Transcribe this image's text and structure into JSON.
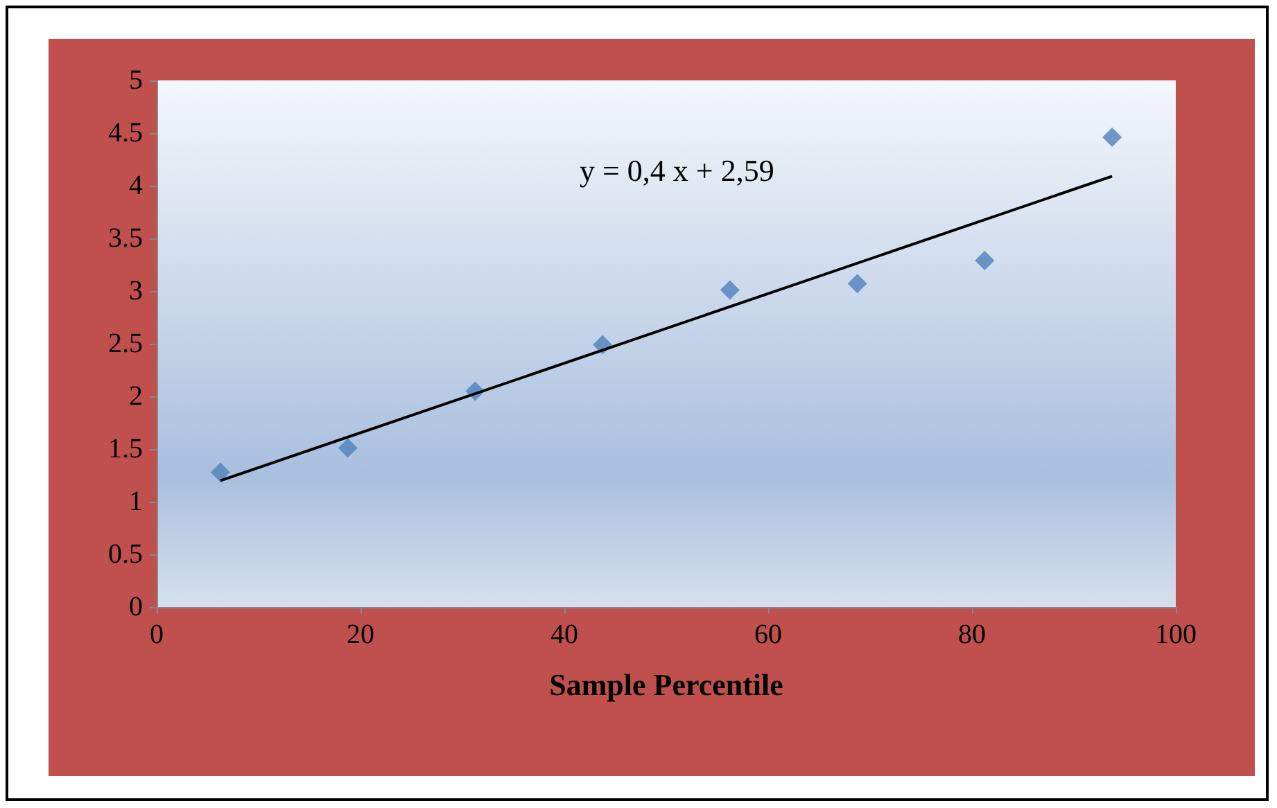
{
  "chart_data": {
    "type": "scatter",
    "xlabel": "Sample Percentile",
    "annotations": [
      "y = 0,4 x + 2,59"
    ],
    "xlim": [
      0,
      100
    ],
    "xticks": [
      0,
      20,
      40,
      60,
      80,
      100
    ],
    "ylim": [
      0,
      5
    ],
    "yticks": [
      0,
      0.5,
      1,
      1.5,
      2,
      2.5,
      3,
      3.5,
      4,
      4.5,
      5
    ],
    "grid": false,
    "series": [
      {
        "color": "#4f81bd",
        "marker": "diamond",
        "x": [
          6.25,
          18.75,
          31.25,
          43.75,
          56.25,
          68.75,
          81.25,
          93.75
        ],
        "values": [
          1.28,
          1.51,
          2.05,
          2.49,
          3.01,
          3.07,
          3.29,
          4.46
        ]
      },
      {
        "type": "line",
        "color": "#000000",
        "marker": "none",
        "x": [
          6.25,
          93.75
        ],
        "values": [
          1.2,
          4.09
        ]
      }
    ]
  }
}
